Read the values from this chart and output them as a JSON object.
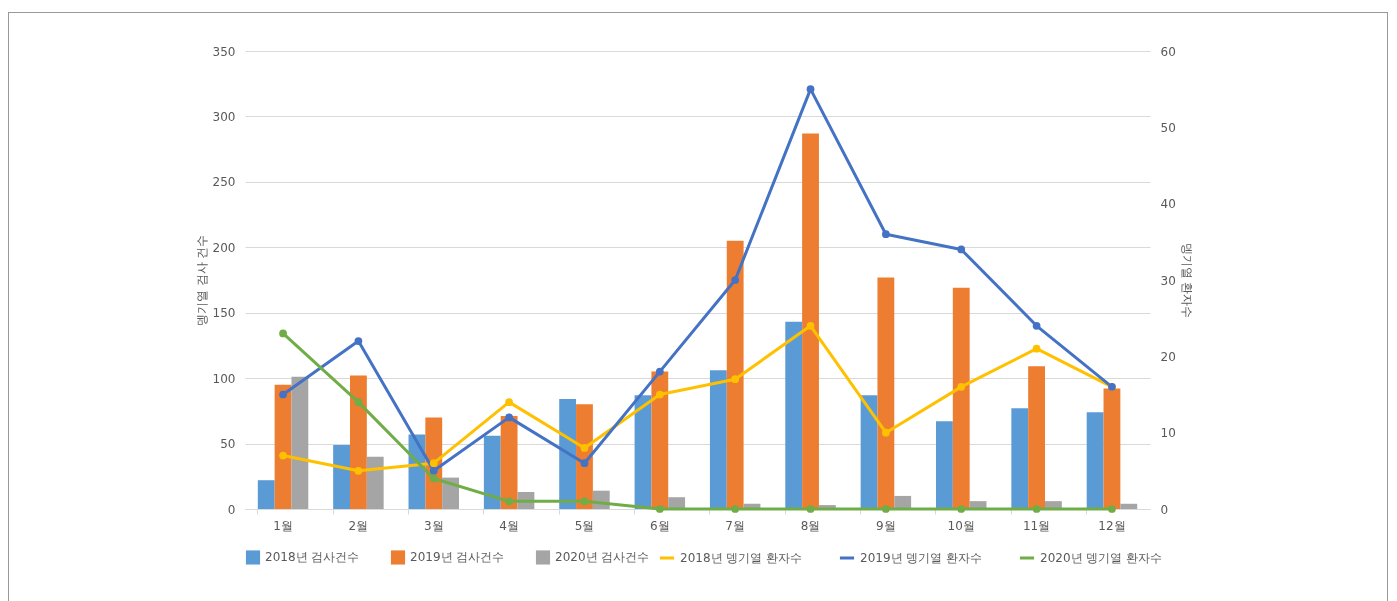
{
  "chart_data": {
    "type": "bar",
    "ylabel": "뎅기열 검사 건수",
    "y2label": "뎅기열 환자수",
    "categories": [
      "1월",
      "2월",
      "3월",
      "4월",
      "5월",
      "6월",
      "7월",
      "8월",
      "9월",
      "10월",
      "11월",
      "12월"
    ],
    "series": [
      {
        "name": "2018년 검사건수",
        "color": "#5b9bd5",
        "values": [
          22,
          49,
          57,
          56,
          84,
          87,
          106,
          143,
          87,
          67,
          77,
          74
        ]
      },
      {
        "name": "2019년 검사건수",
        "color": "#ed7d31",
        "values": [
          95,
          102,
          70,
          71,
          80,
          105,
          205,
          287,
          177,
          169,
          109,
          92
        ]
      },
      {
        "name": "2020년 검사건수",
        "color": "#a5a5a5",
        "values": [
          101,
          40,
          24,
          13,
          14,
          9,
          4,
          3,
          10,
          6,
          6,
          4
        ]
      },
      {
        "name": "2018년 뎅기열 환자수",
        "type": "line",
        "axis": "y2",
        "color": "#ffc000",
        "values": [
          7,
          5,
          6,
          14,
          8,
          15,
          17,
          24,
          10,
          16,
          21,
          16
        ]
      },
      {
        "name": "2019년 뎅기열 환자수",
        "type": "line",
        "axis": "y2",
        "color": "#4472c4",
        "values": [
          15,
          22,
          5,
          12,
          6,
          18,
          30,
          55,
          36,
          34,
          24,
          16
        ]
      },
      {
        "name": "2020년 뎅기열 환자수",
        "type": "line",
        "axis": "y2",
        "color": "#70ad47",
        "values": [
          23,
          14,
          4,
          1,
          1,
          0,
          0,
          0,
          0,
          0,
          0,
          0
        ]
      }
    ],
    "ylim": [
      0,
      350
    ],
    "yticks": [
      0,
      50,
      100,
      150,
      200,
      250,
      300,
      350
    ],
    "y2lim": [
      0,
      60
    ],
    "y2ticks": [
      0,
      10,
      20,
      30,
      40,
      50,
      60
    ],
    "grid": "y",
    "legend": "bottom",
    "marker": "circle",
    "line_style": "solid"
  }
}
